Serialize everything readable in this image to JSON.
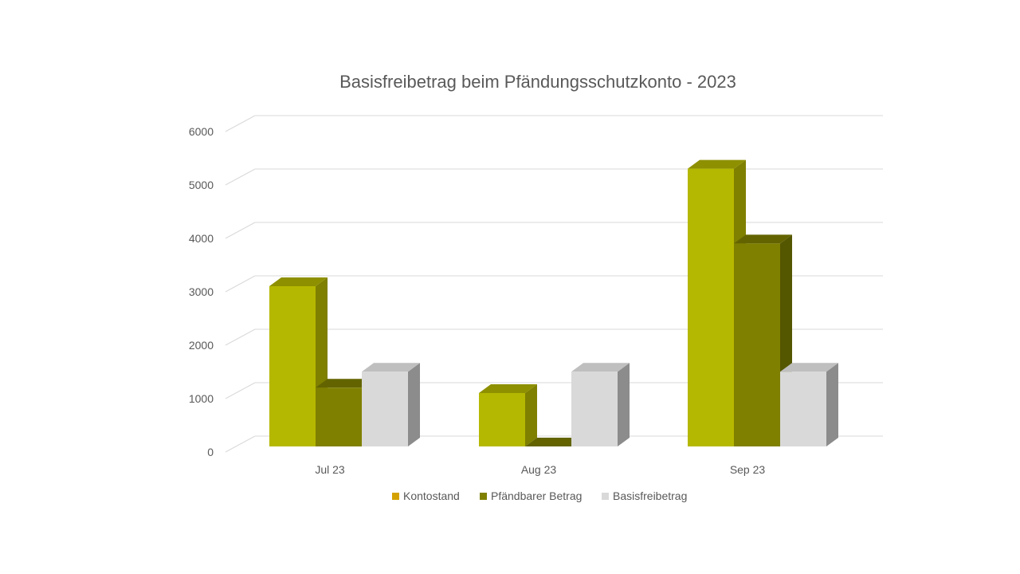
{
  "chart_data": {
    "type": "bar",
    "title": "Basisfreibetrag beim Pfändungsschutzkonto - 2023",
    "xlabel": "",
    "ylabel": "",
    "categories": [
      "Jul 23",
      "Aug 23",
      "Sep 23"
    ],
    "series": [
      {
        "name": "Kontostand",
        "values": [
          3000,
          1000,
          5200
        ],
        "color": "#b5b800",
        "side_color": "#7f8000",
        "top_color": "#8e9000",
        "legend_color": "#d4a200"
      },
      {
        "name": "Pfändbarer Betrag",
        "values": [
          1100,
          0,
          3800
        ],
        "color": "#7f8000",
        "side_color": "#555600",
        "top_color": "#636400",
        "legend_color": "#7f8000"
      },
      {
        "name": "Basisfreibetrag",
        "values": [
          1400,
          1400,
          1400
        ],
        "color": "#d9d9d9",
        "side_color": "#8c8c8c",
        "top_color": "#bfbfbf",
        "legend_color": "#d9d9d9"
      }
    ],
    "ylim": [
      0,
      6000
    ],
    "yticks": [
      0,
      1000,
      2000,
      3000,
      4000,
      5000,
      6000
    ],
    "grid": true,
    "legend": "bottom",
    "three_d": true
  }
}
